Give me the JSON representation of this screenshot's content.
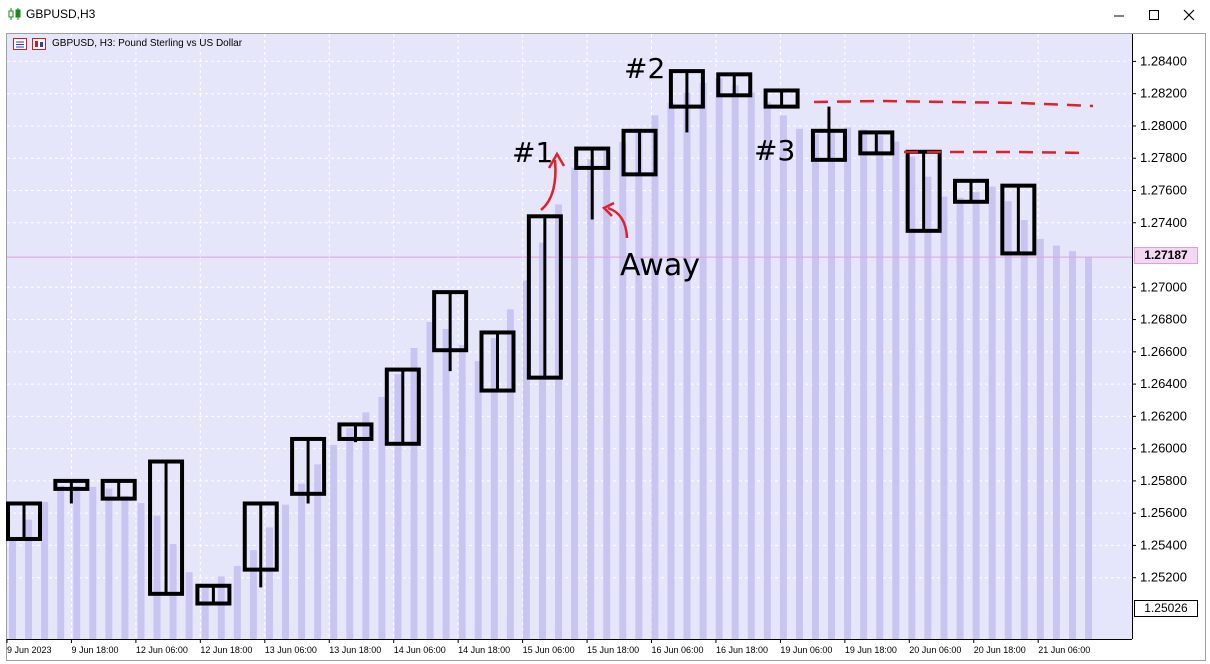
{
  "window": {
    "title": "GBPUSD,H3",
    "minimize_icon": "minimize-icon",
    "maximize_icon": "maximize-icon",
    "close_icon": "close-icon"
  },
  "chart": {
    "label": "GBPUSD, H3:  Pound Sterling vs US Dollar",
    "current_price_tag": "1.27187",
    "bottom_price_tag": "1.25026",
    "colors": {
      "background": "#e6e6fa",
      "histogram": "#c9c5f2",
      "grid": "#ffffff",
      "current_line": "#e0a0e0",
      "candles": "#000000",
      "annotation_red": "#e0202a"
    },
    "annotations": [
      "#1",
      "#2",
      "#3",
      "Away"
    ]
  },
  "chart_data": {
    "type": "candlestick",
    "title": "GBPUSD, H3:  Pound Sterling vs US Dollar",
    "y_ticks": [
      "1.28400",
      "1.28200",
      "1.28000",
      "1.27800",
      "1.27600",
      "1.27400",
      "1.27000",
      "1.26800",
      "1.26600",
      "1.26400",
      "1.26200",
      "1.26000",
      "1.25800",
      "1.25600",
      "1.25400",
      "1.25200"
    ],
    "x_ticks": [
      "9 Jun 2023",
      "9 Jun 18:00",
      "12 Jun 06:00",
      "12 Jun 18:00",
      "13 Jun 06:00",
      "13 Jun 18:00",
      "14 Jun 06:00",
      "14 Jun 18:00",
      "15 Jun 06:00",
      "15 Jun 18:00",
      "16 Jun 06:00",
      "16 Jun 18:00",
      "19 Jun 06:00",
      "19 Jun 18:00",
      "20 Jun 06:00",
      "20 Jun 18:00",
      "21 Jun 06:00"
    ],
    "ylim": [
      1.2482,
      1.2857
    ],
    "current_price": 1.27187,
    "bars": [
      1.2545,
      1.2577,
      1.2576,
      1.2563,
      1.2512,
      1.2531,
      1.2572,
      1.2607,
      1.2635,
      1.2682,
      1.2653,
      1.2705,
      1.2774,
      1.2789,
      1.2813,
      1.2831,
      1.2818,
      1.2794,
      1.28,
      1.2789,
      1.2753,
      1.2763,
      1.2729,
      1.2719
    ],
    "candles": [
      {
        "open": 1.2544,
        "high": 1.2566,
        "low": 1.2544,
        "close": 1.2566
      },
      {
        "open": 1.2576,
        "high": 1.258,
        "low": 1.2566,
        "close": 1.258
      },
      {
        "open": 1.2569,
        "high": 1.258,
        "low": 1.2569,
        "close": 1.258
      },
      {
        "open": 1.2592,
        "high": 1.2592,
        "low": 1.251,
        "close": 1.251
      },
      {
        "open": 1.2504,
        "high": 1.2515,
        "low": 1.2504,
        "close": 1.2515
      },
      {
        "open": 1.2525,
        "high": 1.2566,
        "low": 1.2514,
        "close": 1.2566
      },
      {
        "open": 1.2572,
        "high": 1.2606,
        "low": 1.2566,
        "close": 1.2606
      },
      {
        "open": 1.2606,
        "high": 1.2615,
        "low": 1.2604,
        "close": 1.2615
      },
      {
        "open": 1.2603,
        "high": 1.2649,
        "low": 1.2603,
        "close": 1.2649
      },
      {
        "open": 1.2661,
        "high": 1.2697,
        "low": 1.2648,
        "close": 1.2697
      },
      {
        "open": 1.2636,
        "high": 1.2672,
        "low": 1.2636,
        "close": 1.2672
      },
      {
        "open": 1.2644,
        "high": 1.2744,
        "low": 1.2644,
        "close": 1.2744
      },
      {
        "open": 1.2774,
        "high": 1.2786,
        "low": 1.2742,
        "close": 1.2786
      },
      {
        "open": 1.277,
        "high": 1.2797,
        "low": 1.277,
        "close": 1.2797
      },
      {
        "open": 1.2812,
        "high": 1.2834,
        "low": 1.2796,
        "close": 1.2834
      },
      {
        "open": 1.2819,
        "high": 1.2832,
        "low": 1.2819,
        "close": 1.2832
      },
      {
        "open": 1.2822,
        "high": 1.2822,
        "low": 1.2812,
        "close": 1.2812
      },
      {
        "open": 1.2797,
        "high": 1.2812,
        "low": 1.2779,
        "close": 1.2779
      },
      {
        "open": 1.2796,
        "high": 1.2796,
        "low": 1.2783,
        "close": 1.2783
      },
      {
        "open": 1.2784,
        "high": 1.2784,
        "low": 1.2735,
        "close": 1.2735
      },
      {
        "open": 1.2766,
        "high": 1.2766,
        "low": 1.2753,
        "close": 1.2753
      },
      {
        "open": 1.2763,
        "high": 1.2763,
        "low": 1.2721,
        "close": 1.2721
      }
    ]
  }
}
